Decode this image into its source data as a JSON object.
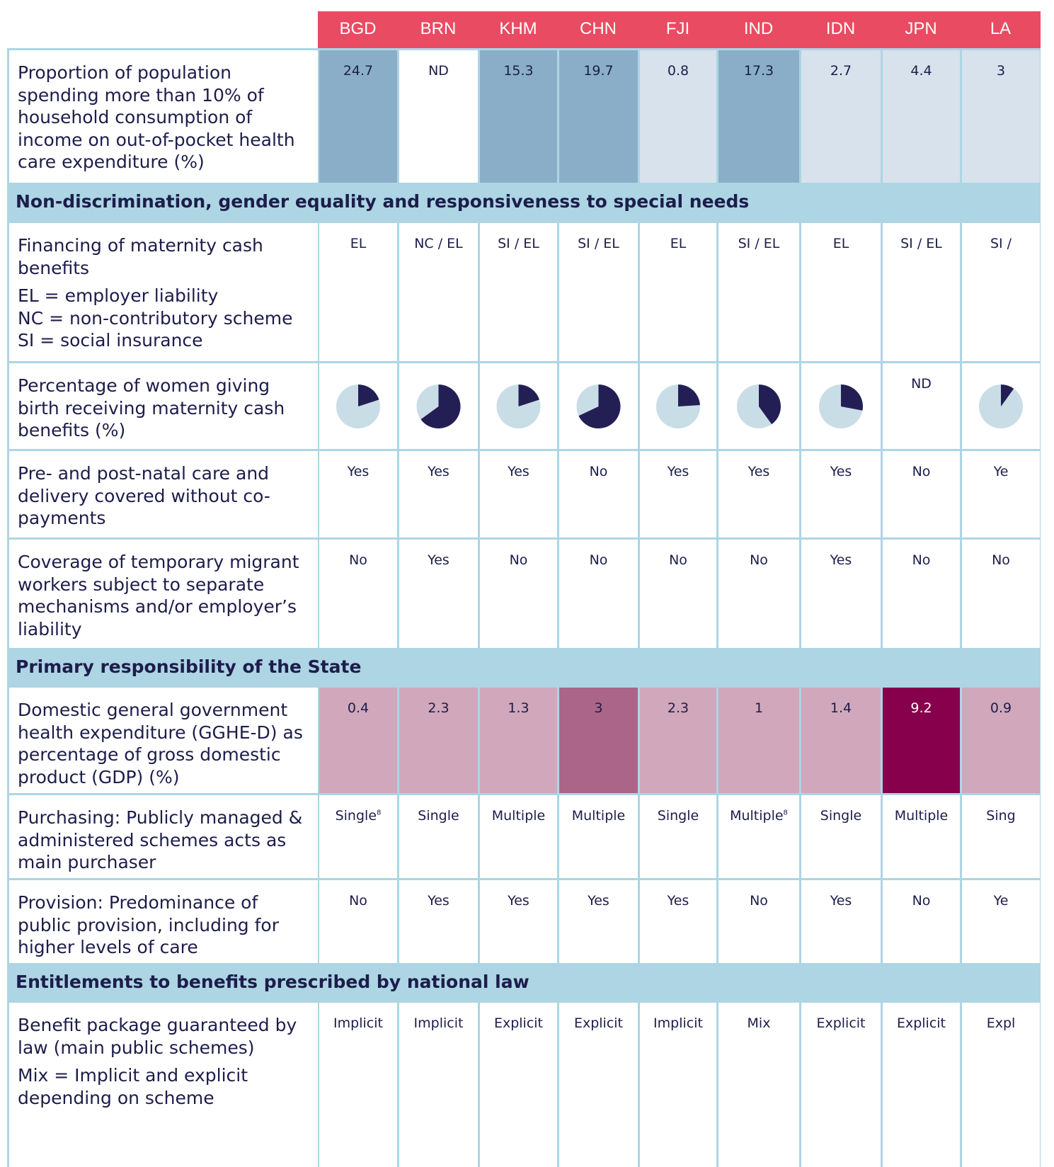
{
  "columns": [
    "BGD",
    "BRN",
    "KHM",
    "CHN",
    "FJI",
    "IND",
    "IDN",
    "JPN",
    "LA"
  ],
  "rows": [
    {
      "label": "Proportion of population spending more than 10% of household consumption of income on out-of-pocket health care expenditure (%)",
      "cells": [
        {
          "text": "24.7",
          "color": "#8aaec8"
        },
        {
          "text": "ND",
          "color": "#ffffff"
        },
        {
          "text": "15.3",
          "color": "#8aaec8"
        },
        {
          "text": "19.7",
          "color": "#8aaec8"
        },
        {
          "text": "0.8",
          "color": "#d7e2ec"
        },
        {
          "text": "17.3",
          "color": "#8aaec8"
        },
        {
          "text": "2.7",
          "color": "#d7e2ec"
        },
        {
          "text": "4.4",
          "color": "#d7e2ec"
        },
        {
          "text": "3",
          "color": "#d7e2ec"
        }
      ]
    },
    {
      "section": "Non-discrimination, gender equality and responsiveness to special needs"
    },
    {
      "label": "Financing of maternity cash benefits",
      "notes": [
        "EL = employer liability",
        "NC = non-contributory scheme",
        "SI = social insurance"
      ],
      "cells": [
        {
          "text": "EL"
        },
        {
          "text": "NC / EL"
        },
        {
          "text": "SI / EL"
        },
        {
          "text": "SI / EL"
        },
        {
          "text": "EL"
        },
        {
          "text": "SI / EL"
        },
        {
          "text": "EL"
        },
        {
          "text": "SI / EL"
        },
        {
          "text": "SI /"
        }
      ]
    },
    {
      "label": "Percentage of women giving birth receiving maternity cash benefits (%)",
      "pie": {
        "fill": "#231f55",
        "rest": "#c9dde6"
      },
      "cells": [
        {
          "value": 20
        },
        {
          "value": 65
        },
        {
          "value": 20
        },
        {
          "value": 68
        },
        {
          "value": 24
        },
        {
          "value": 40
        },
        {
          "value": 28
        },
        {
          "text": "ND"
        },
        {
          "value": 10
        }
      ]
    },
    {
      "label": "Pre- and post-natal care and delivery covered without co-payments",
      "cells": [
        {
          "text": "Yes"
        },
        {
          "text": "Yes"
        },
        {
          "text": "Yes"
        },
        {
          "text": "No"
        },
        {
          "text": "Yes"
        },
        {
          "text": "Yes"
        },
        {
          "text": "Yes"
        },
        {
          "text": "No"
        },
        {
          "text": "Ye"
        }
      ]
    },
    {
      "label": "Coverage of temporary migrant workers subject to separate mechanisms and/or employer’s liability",
      "cells": [
        {
          "text": "No"
        },
        {
          "text": "Yes"
        },
        {
          "text": "No"
        },
        {
          "text": "No"
        },
        {
          "text": "No"
        },
        {
          "text": "No"
        },
        {
          "text": "Yes"
        },
        {
          "text": "No"
        },
        {
          "text": "No"
        }
      ]
    },
    {
      "section": "Primary responsibility of the State"
    },
    {
      "label": "Domestic general government health expenditure (GGHE-D) as percentage of gross domestic product (GDP) (%)",
      "cells": [
        {
          "text": "0.4",
          "color": "#d0a7bb"
        },
        {
          "text": "2.3",
          "color": "#d0a7bb"
        },
        {
          "text": "1.3",
          "color": "#d0a7bb"
        },
        {
          "text": "3",
          "color": "#ab6588"
        },
        {
          "text": "2.3",
          "color": "#d0a7bb"
        },
        {
          "text": "1",
          "color": "#d0a7bb"
        },
        {
          "text": "1.4",
          "color": "#d0a7bb"
        },
        {
          "text": "9.2",
          "color": "#86004c",
          "ink": "#ffffff"
        },
        {
          "text": "0.9",
          "color": "#d0a7bb"
        }
      ]
    },
    {
      "label": "Purchasing: Publicly managed & administered schemes acts as main purchaser",
      "cells": [
        {
          "text": "Single",
          "sup": "8"
        },
        {
          "text": "Single"
        },
        {
          "text": "Multiple"
        },
        {
          "text": "Multiple"
        },
        {
          "text": "Single"
        },
        {
          "text": "Multiple",
          "sup": "8"
        },
        {
          "text": "Single"
        },
        {
          "text": "Multiple"
        },
        {
          "text": "Sing"
        }
      ]
    },
    {
      "label": "Provision: Predominance of public provision, including for higher levels of care",
      "cells": [
        {
          "text": "No"
        },
        {
          "text": "Yes"
        },
        {
          "text": "Yes"
        },
        {
          "text": "Yes"
        },
        {
          "text": "Yes"
        },
        {
          "text": "No"
        },
        {
          "text": "Yes"
        },
        {
          "text": "No"
        },
        {
          "text": "Ye"
        }
      ]
    },
    {
      "section": "Entitlements to benefits prescribed by national law"
    },
    {
      "label": "Benefit package guaranteed by law (main public schemes)",
      "notes": [
        "Mix = Implicit and explicit depending on scheme"
      ],
      "cells": [
        {
          "text": "Implicit"
        },
        {
          "text": "Implicit"
        },
        {
          "text": "Explicit"
        },
        {
          "text": "Explicit"
        },
        {
          "text": "Implicit"
        },
        {
          "text": "Mix"
        },
        {
          "text": "Explicit"
        },
        {
          "text": "Explicit"
        },
        {
          "text": "Expl"
        }
      ]
    }
  ]
}
